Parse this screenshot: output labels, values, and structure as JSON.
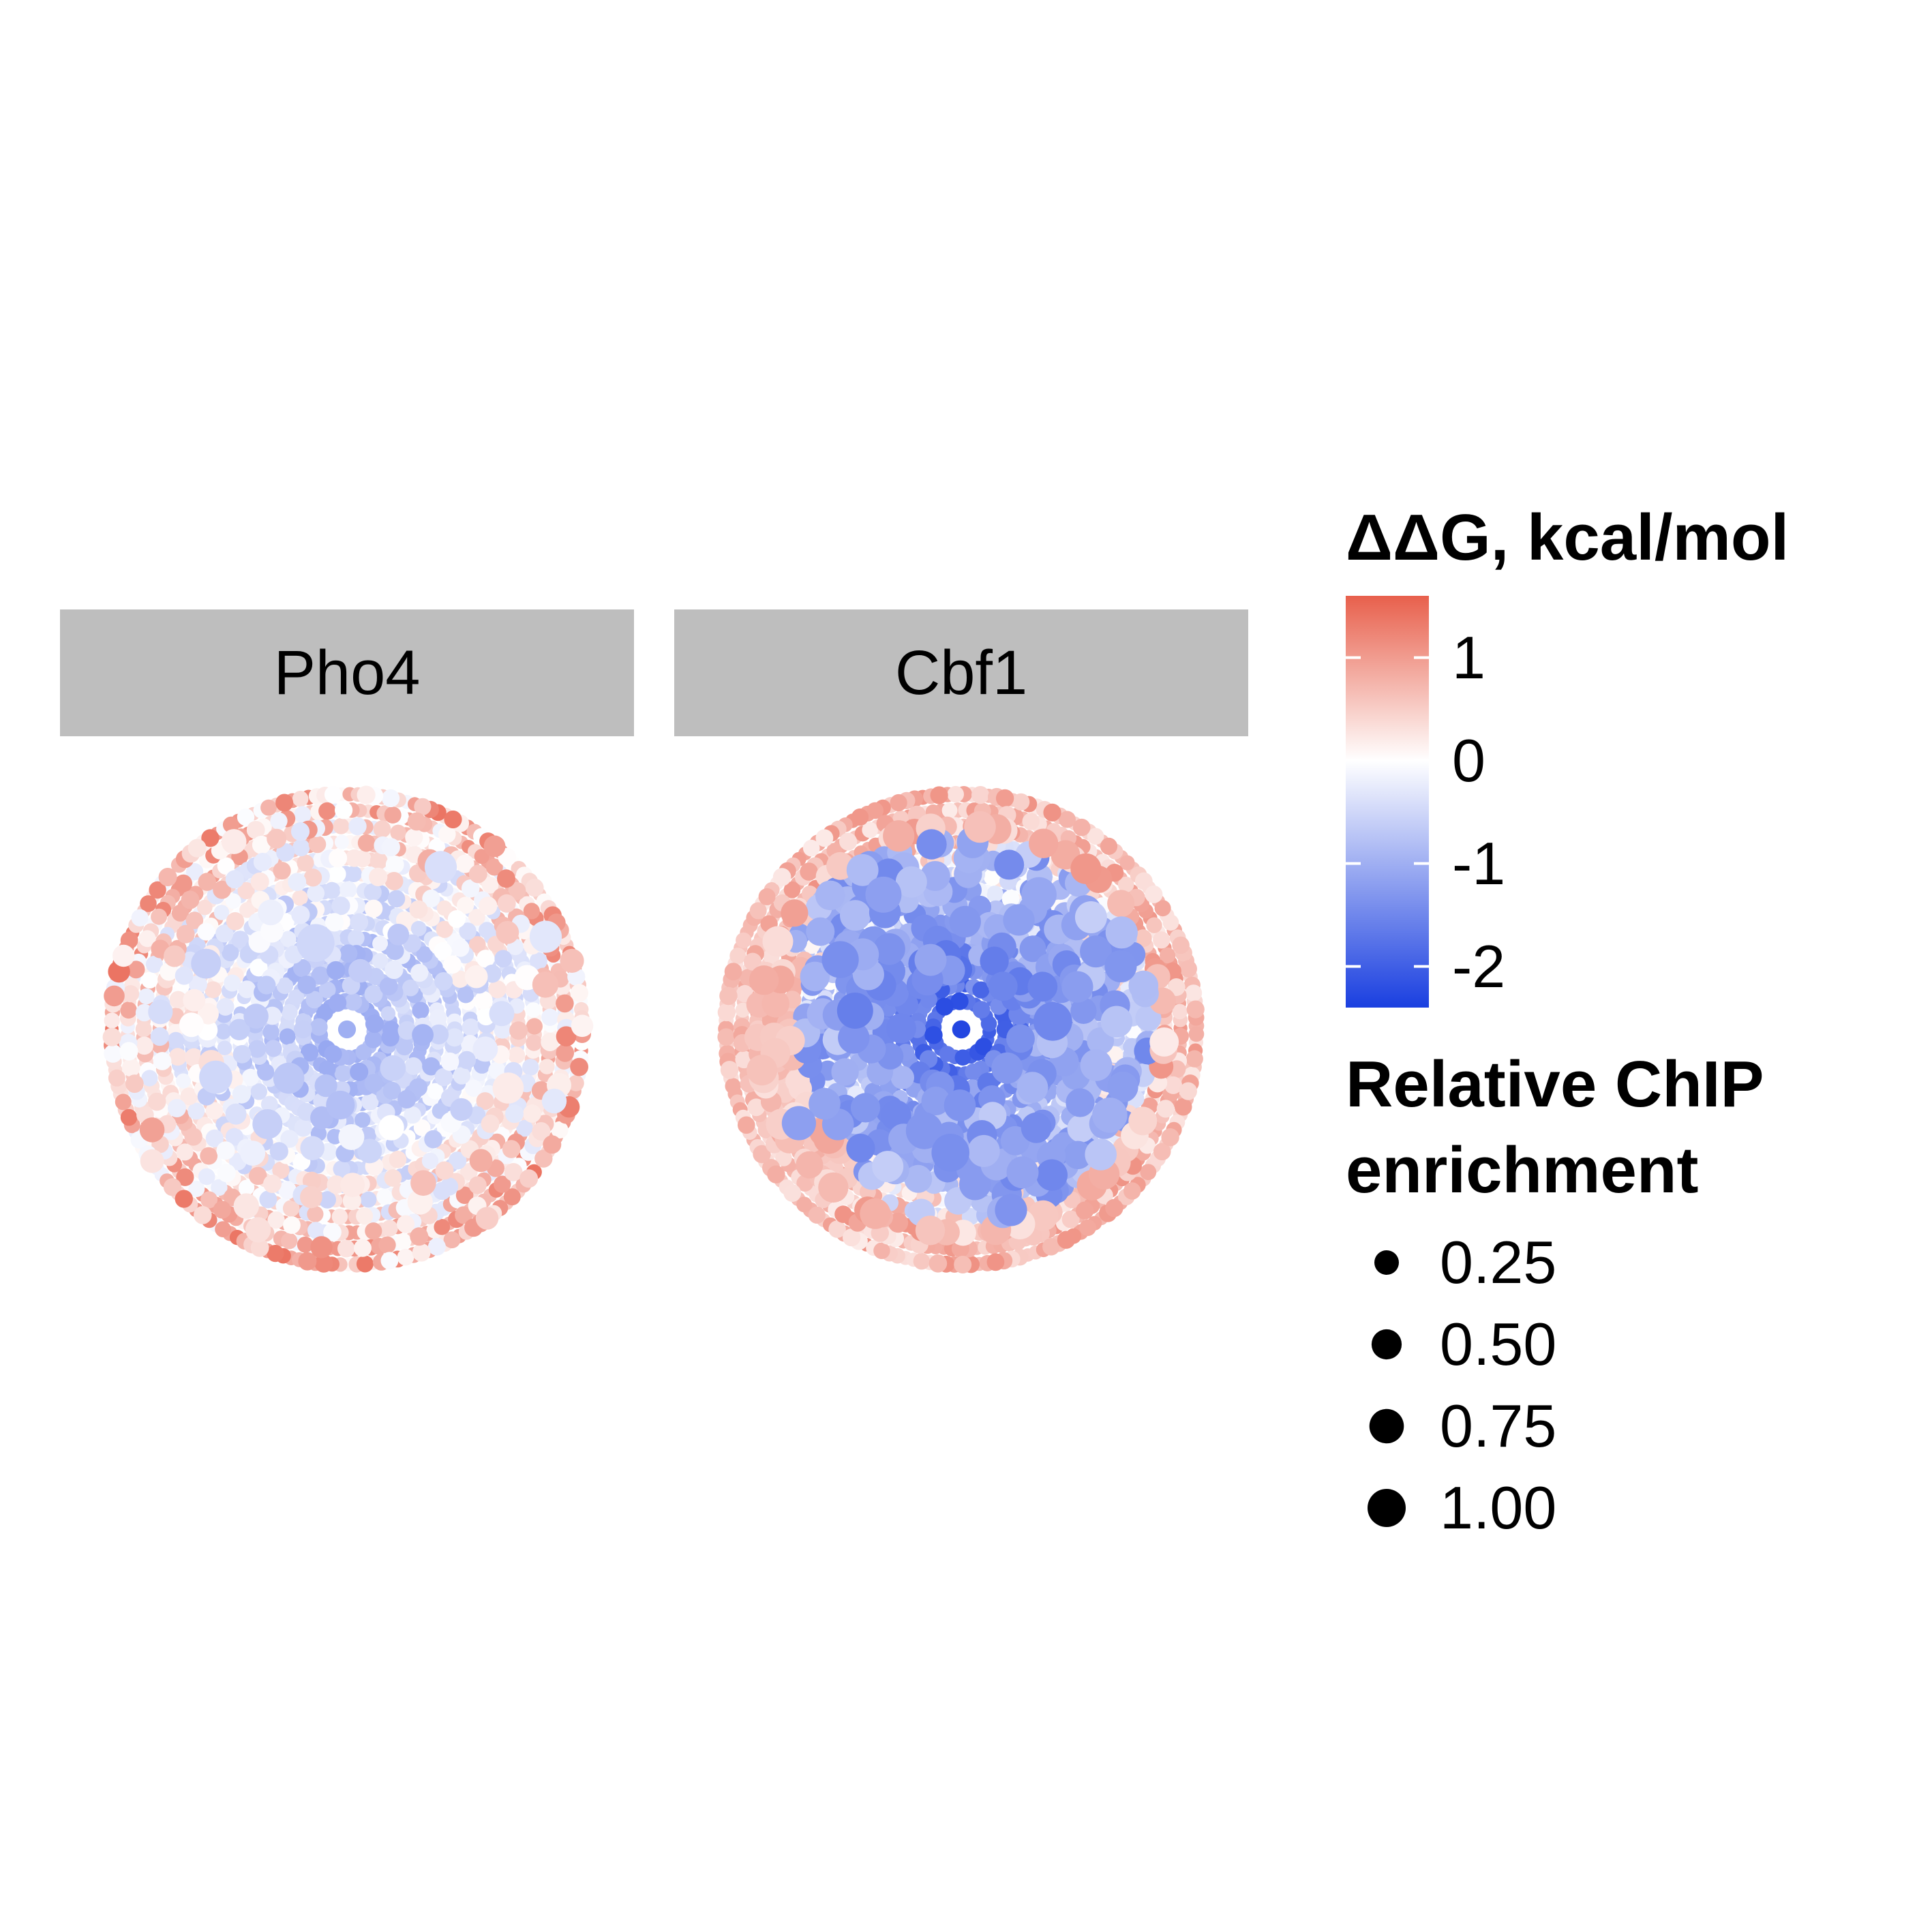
{
  "chart_data": {
    "type": "scatter",
    "layout": "polar-spiral-facets",
    "facets": [
      {
        "name": "Pho4",
        "ring_count": 14,
        "description_of_values": "ddG mostly -0.5 to 0.8; enrichment mostly 0.1-0.3 with a few points up to ~0.9",
        "core_ddG": -0.9,
        "outer_ddG": 0.6,
        "high_enrichment_points": [
          {
            "ring": 4,
            "angle": 140,
            "ddG": -0.7,
            "enrichment": 0.55
          },
          {
            "ring": 4,
            "angle": 95,
            "ddG": -0.8,
            "enrichment": 0.45
          },
          {
            "ring": 5,
            "angle": 250,
            "ddG": -0.5,
            "enrichment": 0.9
          },
          {
            "ring": 8,
            "angle": 160,
            "ddG": -0.5,
            "enrichment": 0.65
          },
          {
            "ring": 9,
            "angle": 205,
            "ddG": -0.6,
            "enrichment": 0.5
          },
          {
            "ring": 11,
            "angle": 300,
            "ddG": -0.4,
            "enrichment": 0.6
          },
          {
            "ring": 10,
            "angle": 20,
            "ddG": 0.2,
            "enrichment": 0.55
          },
          {
            "ring": 13,
            "angle": 335,
            "ddG": -0.3,
            "enrichment": 0.6
          },
          {
            "ring": 7,
            "angle": 130,
            "ddG": -0.6,
            "enrichment": 0.5
          }
        ]
      },
      {
        "name": "Cbf1",
        "ring_count": 14,
        "description_of_values": "ddG from -2.3 in the core to ~1.2 at the rim; many high-enrichment points in the middle rings",
        "core_ddG": -2.2,
        "outer_ddG": 0.7,
        "high_enrichment_points": [
          {
            "ring": 6,
            "angle": 110,
            "ddG": -1.3,
            "enrichment": 0.85
          },
          {
            "ring": 7,
            "angle": 95,
            "ddG": -1.4,
            "enrichment": 0.9
          },
          {
            "ring": 5,
            "angle": 355,
            "ddG": -1.5,
            "enrichment": 0.95
          },
          {
            "ring": 6,
            "angle": 190,
            "ddG": -1.6,
            "enrichment": 0.8
          },
          {
            "ring": 8,
            "angle": 210,
            "ddG": -1.4,
            "enrichment": 0.85
          },
          {
            "ring": 9,
            "angle": 240,
            "ddG": -1.2,
            "enrichment": 0.8
          },
          {
            "ring": 9,
            "angle": 300,
            "ddG": -1.1,
            "enrichment": 0.75
          },
          {
            "ring": 10,
            "angle": 30,
            "ddG": -1.0,
            "enrichment": 0.75
          },
          {
            "ring": 11,
            "angle": 150,
            "ddG": -1.2,
            "enrichment": 0.7
          }
        ]
      }
    ],
    "color_legend": {
      "title": "ΔΔG, kcal/mol",
      "min": -2.4,
      "max": 1.6,
      "ticks": [
        1,
        0,
        -1,
        -2
      ],
      "tick_labels": [
        "1",
        "0",
        "-1",
        "-2"
      ],
      "low_color": "#1a3fe0",
      "mid_color": "#ffffff",
      "high_color": "#e8604c"
    },
    "size_legend": {
      "title_line1": "Relative ChIP",
      "title_line2": "enrichment",
      "values": [
        0.25,
        0.5,
        0.75,
        1.0
      ],
      "labels": [
        "0.25",
        "0.50",
        "0.75",
        "1.00"
      ]
    },
    "grid": false,
    "legend_position": "right"
  }
}
